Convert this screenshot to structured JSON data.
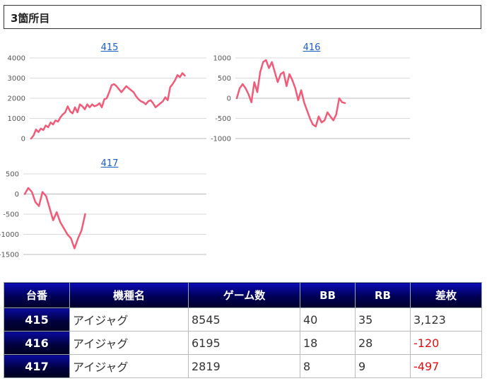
{
  "header": {
    "title": "3箇所目"
  },
  "chart_data": [
    {
      "type": "line",
      "title": "415",
      "ylim": [
        0,
        4000
      ],
      "yticks": [
        "4000",
        "3000",
        "2000",
        "1000",
        "0"
      ],
      "series": [
        {
          "values": [
            0,
            150,
            450,
            320,
            500,
            420,
            650,
            560,
            800,
            700,
            900,
            840,
            1050,
            1200,
            1300,
            1600,
            1350,
            1250,
            1550,
            1300,
            1700,
            1600,
            1450,
            1700,
            1550,
            1700,
            1600,
            1650,
            1750,
            1550,
            1950,
            2000,
            2300,
            2650,
            2700,
            2600,
            2450,
            2300,
            2450,
            2600,
            2500,
            2400,
            2300,
            2100,
            1950,
            1850,
            1800,
            1700,
            1850,
            1900,
            1750,
            1550,
            1650,
            1750,
            1850,
            2050,
            1900,
            2550,
            2700,
            2900,
            3150,
            3050,
            3250,
            3123
          ]
        }
      ]
    },
    {
      "type": "line",
      "title": "416",
      "ylim": [
        -1000,
        1000
      ],
      "yticks": [
        "1000",
        "500",
        "0",
        "-500",
        "-1000"
      ],
      "series": [
        {
          "values": [
            0,
            250,
            350,
            250,
            100,
            -100,
            400,
            150,
            650,
            900,
            950,
            750,
            900,
            650,
            400,
            600,
            650,
            300,
            600,
            450,
            250,
            -50,
            200,
            -100,
            -300,
            -500,
            -650,
            -700,
            -450,
            -600,
            -550,
            -350,
            -450,
            -550,
            -400,
            0,
            -100,
            -120
          ]
        }
      ]
    },
    {
      "type": "line",
      "title": "417",
      "ylim": [
        -1500,
        500
      ],
      "yticks": [
        "500",
        "0",
        "-500",
        "-1000",
        "-1500"
      ],
      "series": [
        {
          "values": [
            0,
            150,
            50,
            -200,
            -300,
            50,
            -50,
            -350,
            -650,
            -450,
            -700,
            -850,
            -1000,
            -1100,
            -1350,
            -1100,
            -900,
            -497
          ]
        }
      ]
    }
  ],
  "table": {
    "headers": [
      "台番",
      "機種名",
      "ゲーム数",
      "BB",
      "RB",
      "差枚"
    ],
    "rows": [
      {
        "no": "415",
        "name": "アイジャグ",
        "games": "8545",
        "bb": "40",
        "rb": "35",
        "diff": "3,123"
      },
      {
        "no": "416",
        "name": "アイジャグ",
        "games": "6195",
        "bb": "18",
        "rb": "28",
        "diff": "-120"
      },
      {
        "no": "417",
        "name": "アイジャグ",
        "games": "2819",
        "bb": "8",
        "rb": "9",
        "diff": "-497"
      }
    ]
  },
  "colors": {
    "line": "#f25a78",
    "negative": "#e01010",
    "header_bg": "#00004a"
  }
}
